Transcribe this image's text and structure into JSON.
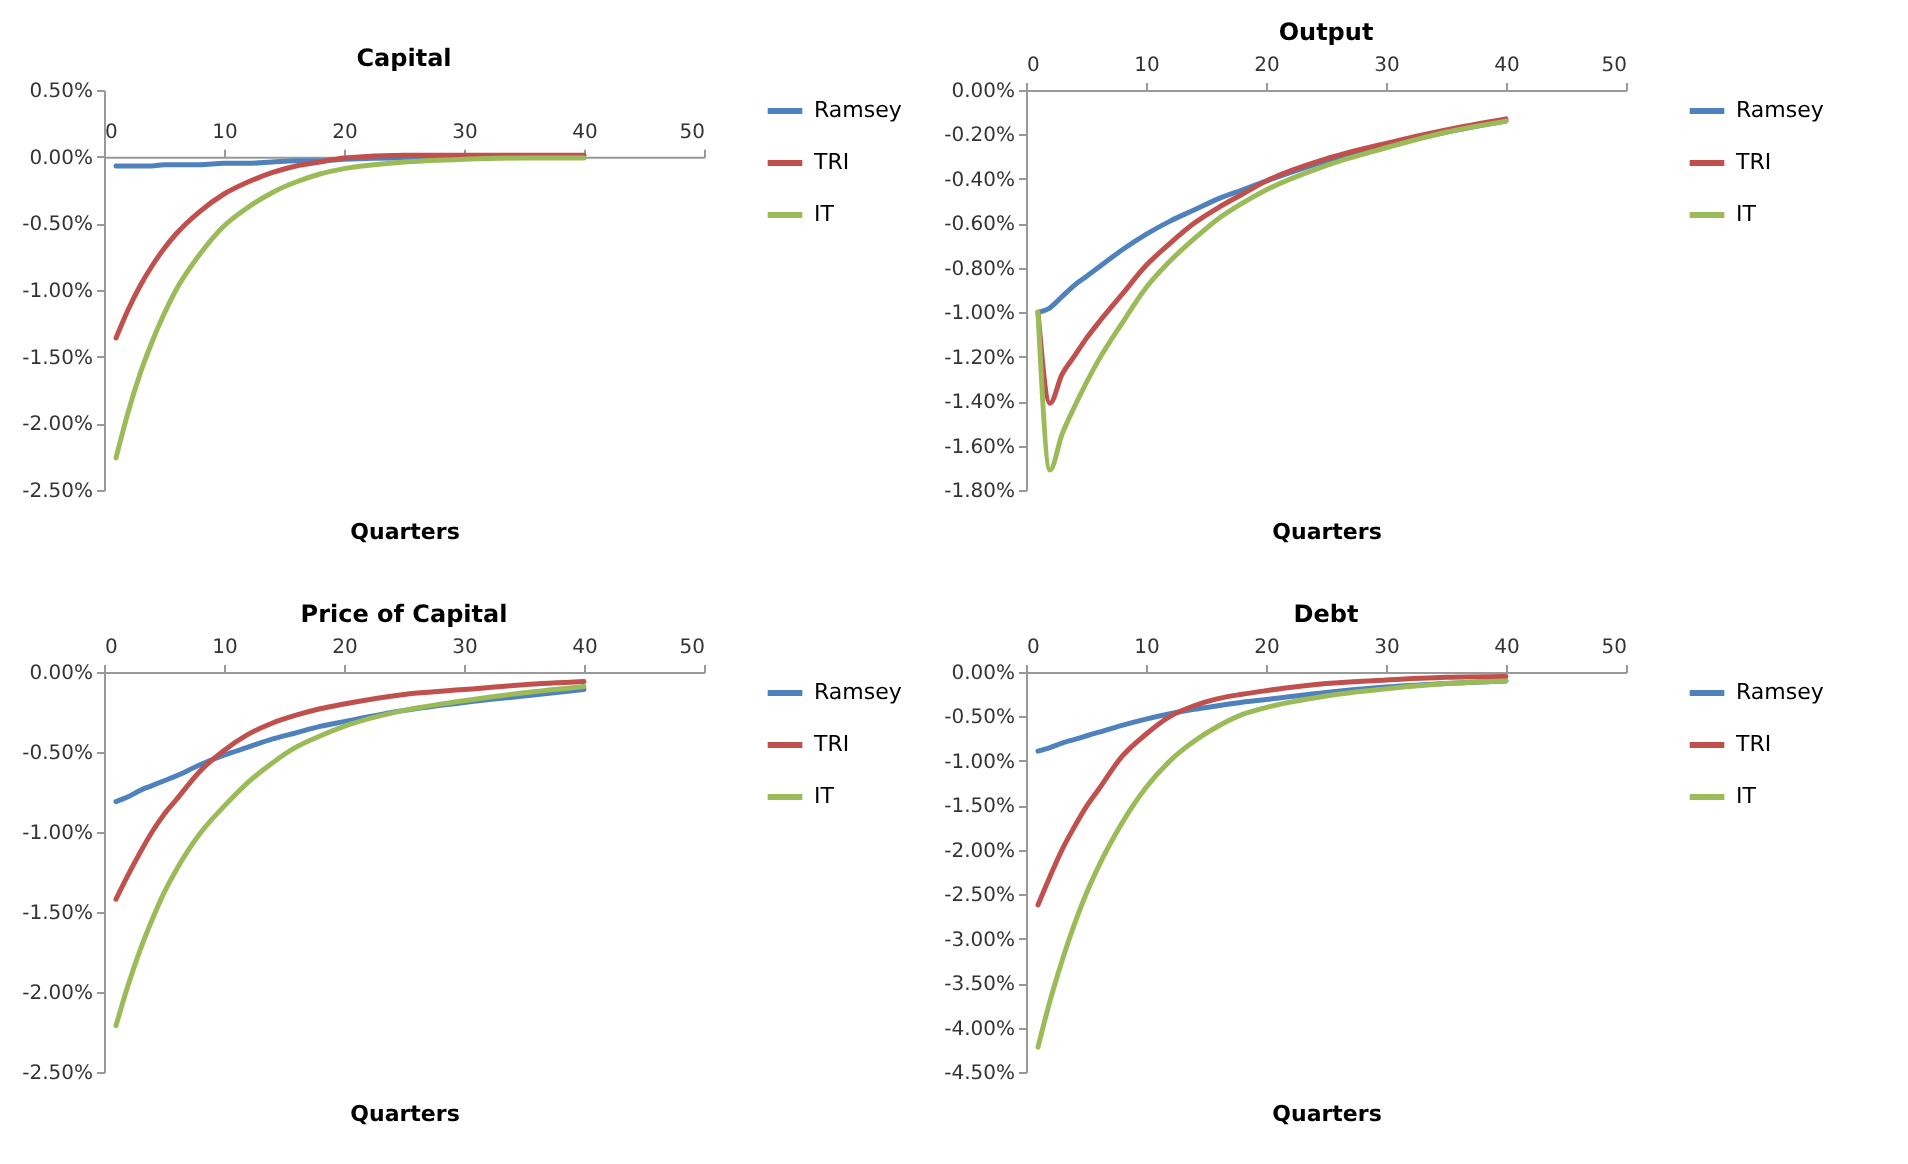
{
  "chart_data": [
    {
      "type": "line",
      "title": "Capital",
      "xlabel": "Quarters",
      "legend": "right",
      "x": [
        1,
        2,
        3,
        4,
        5,
        6,
        8,
        10,
        12,
        14,
        16,
        18,
        20,
        25,
        30,
        35,
        40
      ],
      "xlim": [
        0,
        50
      ],
      "xticks": [
        0,
        10,
        20,
        30,
        40,
        50
      ],
      "ylim": [
        -2.5,
        0.5
      ],
      "yticks": [
        {
          "value": -2.5,
          "label": "-2.50%"
        },
        {
          "value": -2,
          "label": "-2.00%"
        },
        {
          "value": -1.5,
          "label": "-1.50%"
        },
        {
          "value": -1,
          "label": "-1.00%"
        },
        {
          "value": -0.5,
          "label": "-0.50%"
        },
        {
          "value": 0,
          "label": "0.00%"
        },
        {
          "value": 0.5,
          "label": "0.50%"
        }
      ],
      "series": [
        {
          "name": "Ramsey",
          "color": "#4f81bd",
          "values": [
            -0.07,
            -0.07,
            -0.07,
            -0.07,
            -0.06,
            -0.06,
            -0.06,
            -0.05,
            -0.05,
            -0.04,
            -0.03,
            -0.03,
            -0.02,
            -0.01,
            -0.01,
            null,
            null
          ]
        },
        {
          "name": "TRI",
          "color": "#c0504d",
          "values": [
            -1.36,
            -1.15,
            -0.97,
            -0.82,
            -0.69,
            -0.58,
            -0.41,
            -0.28,
            -0.19,
            -0.12,
            -0.07,
            -0.04,
            -0.01,
            0.01,
            0.01,
            0.01,
            0.01
          ]
        },
        {
          "name": "IT",
          "color": "#9bbb59",
          "values": [
            -2.26,
            -1.92,
            -1.63,
            -1.39,
            -1.18,
            -1.0,
            -0.73,
            -0.52,
            -0.38,
            -0.27,
            -0.19,
            -0.13,
            -0.09,
            -0.04,
            -0.02,
            -0.01,
            -0.01
          ]
        }
      ]
    },
    {
      "type": "line",
      "title": "Output",
      "xlabel": "Quarters",
      "legend": "right",
      "x": [
        1,
        2,
        3,
        4,
        5,
        6,
        8,
        10,
        12,
        14,
        16,
        18,
        20,
        25,
        30,
        35,
        40
      ],
      "xlim": [
        0,
        50
      ],
      "xticks": [
        0,
        10,
        20,
        30,
        40,
        50
      ],
      "ylim": [
        -1.8,
        0
      ],
      "yticks": [
        {
          "value": -1.8,
          "label": "-1.80%"
        },
        {
          "value": -1.6,
          "label": "-1.60%"
        },
        {
          "value": -1.4,
          "label": "-1.40%"
        },
        {
          "value": -1.2,
          "label": "-1.20%"
        },
        {
          "value": -1,
          "label": "-1.00%"
        },
        {
          "value": -0.8,
          "label": "-0.80%"
        },
        {
          "value": -0.6,
          "label": "-0.60%"
        },
        {
          "value": -0.4,
          "label": "-0.40%"
        },
        {
          "value": -0.2,
          "label": "-0.20%"
        },
        {
          "value": 0,
          "label": "0.00%"
        }
      ],
      "series": [
        {
          "name": "Ramsey",
          "color": "#4f81bd",
          "values": [
            -1.0,
            -0.98,
            -0.93,
            -0.88,
            -0.84,
            -0.8,
            -0.72,
            -0.65,
            -0.59,
            -0.54,
            -0.49,
            -0.45,
            -0.41,
            -0.32,
            -0.25,
            -0.19,
            -0.14
          ]
        },
        {
          "name": "TRI",
          "color": "#c0504d",
          "values": [
            -1.0,
            -1.41,
            -1.28,
            -1.2,
            -1.12,
            -1.05,
            -0.92,
            -0.79,
            -0.69,
            -0.6,
            -0.53,
            -0.47,
            -0.41,
            -0.31,
            -0.24,
            -0.18,
            -0.13
          ]
        },
        {
          "name": "IT",
          "color": "#9bbb59",
          "values": [
            -1.0,
            -1.71,
            -1.55,
            -1.43,
            -1.32,
            -1.22,
            -1.05,
            -0.89,
            -0.77,
            -0.67,
            -0.58,
            -0.51,
            -0.45,
            -0.34,
            -0.26,
            -0.19,
            -0.14
          ]
        }
      ]
    },
    {
      "type": "line",
      "title": "Price of Capital",
      "xlabel": "Quarters",
      "legend": "right",
      "x": [
        1,
        2,
        3,
        4,
        5,
        6,
        8,
        10,
        12,
        14,
        16,
        18,
        20,
        25,
        30,
        35,
        40
      ],
      "xlim": [
        0,
        50
      ],
      "xticks": [
        0,
        10,
        20,
        30,
        40,
        50
      ],
      "ylim": [
        -2.5,
        0
      ],
      "yticks": [
        {
          "value": -2.5,
          "label": "-2.50%"
        },
        {
          "value": -2,
          "label": "-2.00%"
        },
        {
          "value": -1.5,
          "label": "-1.50%"
        },
        {
          "value": -1,
          "label": "-1.00%"
        },
        {
          "value": -0.5,
          "label": "-0.50%"
        },
        {
          "value": 0,
          "label": "0.00%"
        }
      ],
      "series": [
        {
          "name": "Ramsey",
          "color": "#4f81bd",
          "values": [
            -0.81,
            -0.78,
            -0.74,
            -0.71,
            -0.68,
            -0.65,
            -0.58,
            -0.52,
            -0.47,
            -0.42,
            -0.38,
            -0.34,
            -0.31,
            -0.24,
            -0.19,
            -0.15,
            -0.11
          ]
        },
        {
          "name": "TRI",
          "color": "#c0504d",
          "values": [
            -1.42,
            -1.27,
            -1.13,
            -1.0,
            -0.89,
            -0.8,
            -0.62,
            -0.49,
            -0.39,
            -0.32,
            -0.27,
            -0.23,
            -0.2,
            -0.14,
            -0.11,
            -0.08,
            -0.06
          ]
        },
        {
          "name": "IT",
          "color": "#9bbb59",
          "values": [
            -2.21,
            -1.96,
            -1.74,
            -1.55,
            -1.38,
            -1.24,
            -1.01,
            -0.84,
            -0.69,
            -0.57,
            -0.47,
            -0.4,
            -0.34,
            -0.24,
            -0.18,
            -0.13,
            -0.09
          ]
        }
      ]
    },
    {
      "type": "line",
      "title": "Debt",
      "xlabel": "Quarters",
      "legend": "right",
      "x": [
        1,
        2,
        3,
        4,
        5,
        6,
        8,
        10,
        12,
        14,
        16,
        18,
        20,
        25,
        30,
        35,
        40
      ],
      "xlim": [
        0,
        50
      ],
      "xticks": [
        0,
        10,
        20,
        30,
        40,
        50
      ],
      "ylim": [
        -4.5,
        0
      ],
      "yticks": [
        {
          "value": -4.5,
          "label": "-4.50%"
        },
        {
          "value": -4,
          "label": "-4.00%"
        },
        {
          "value": -3.5,
          "label": "-3.50%"
        },
        {
          "value": -3,
          "label": "-3.00%"
        },
        {
          "value": -2.5,
          "label": "-2.50%"
        },
        {
          "value": -2,
          "label": "-2.00%"
        },
        {
          "value": -1.5,
          "label": "-1.50%"
        },
        {
          "value": -1,
          "label": "-1.00%"
        },
        {
          "value": -0.5,
          "label": "-0.50%"
        },
        {
          "value": 0,
          "label": "0.00%"
        }
      ],
      "series": [
        {
          "name": "Ramsey",
          "color": "#4f81bd",
          "values": [
            -0.89,
            -0.85,
            -0.8,
            -0.76,
            -0.72,
            -0.68,
            -0.6,
            -0.53,
            -0.47,
            -0.42,
            -0.38,
            -0.34,
            -0.31,
            -0.23,
            -0.17,
            -0.13,
            -0.1
          ]
        },
        {
          "name": "TRI",
          "color": "#c0504d",
          "values": [
            -2.62,
            -2.3,
            -2.0,
            -1.75,
            -1.52,
            -1.33,
            -0.95,
            -0.7,
            -0.5,
            -0.38,
            -0.3,
            -0.25,
            -0.21,
            -0.13,
            -0.09,
            -0.06,
            -0.05
          ]
        },
        {
          "name": "IT",
          "color": "#9bbb59",
          "values": [
            -4.22,
            -3.7,
            -3.25,
            -2.85,
            -2.5,
            -2.2,
            -1.7,
            -1.3,
            -1.0,
            -0.78,
            -0.61,
            -0.48,
            -0.4,
            -0.27,
            -0.19,
            -0.13,
            -0.1
          ]
        }
      ]
    }
  ]
}
